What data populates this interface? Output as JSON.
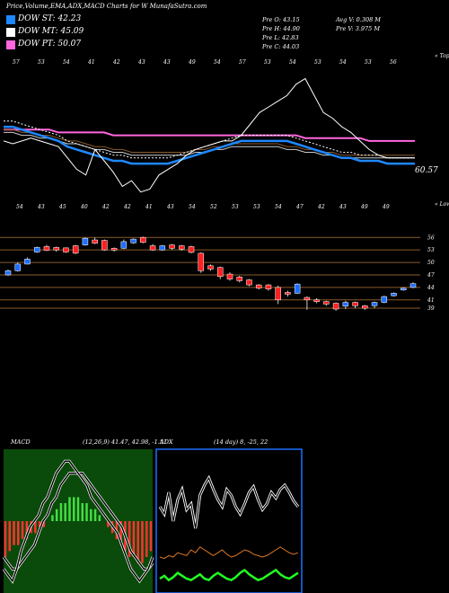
{
  "header": {
    "title": "Price,Volume,EMA,ADX,MACD Charts for W MunafaSutra.com"
  },
  "legend": [
    {
      "label": "DOW ST: 42.23",
      "color": "#1e88ff"
    },
    {
      "label": "DOW MT: 45.09",
      "color": "#ffffff"
    },
    {
      "label": "DOW PT: 50.07",
      "color": "#ff66dd"
    }
  ],
  "stats": {
    "o": "Pre  O: 43.15",
    "h": "Pre  H: 44.90",
    "l": "Pre  L: 42.83",
    "c": "Pre  C: 44.03",
    "avgv": "Avg V: 0.308 M",
    "prev": "Pre  V: 3.975 M"
  },
  "top_labels": {
    "right_top": "« Tops",
    "right_bottom": "« Lows",
    "last_price": "60.57"
  },
  "chart_data": [
    {
      "type": "line",
      "name": "ema-panel",
      "tops_labels": [
        "57",
        "53",
        "54",
        "41",
        "42",
        "43",
        "43",
        "49",
        "54",
        "57",
        "53",
        "54",
        "53",
        "54",
        "53",
        "56"
      ],
      "lows_labels": [
        "54",
        "43",
        "45",
        "40",
        "42",
        "42",
        "41",
        "43",
        "54",
        "52",
        "53",
        "53",
        "54",
        "47",
        "42",
        "43",
        "49",
        "49"
      ],
      "price": [
        50,
        49,
        50,
        51,
        50,
        49,
        48,
        44,
        40,
        38,
        47,
        43,
        39,
        34,
        36,
        32,
        33,
        38,
        40,
        42,
        45,
        47,
        48,
        49,
        50,
        50,
        52,
        56,
        60,
        62,
        64,
        66,
        70,
        72,
        66,
        60,
        58,
        55,
        53,
        50,
        47,
        45,
        44,
        44,
        44,
        44
      ],
      "dow_st": [
        55,
        55,
        54,
        53,
        52,
        51,
        50,
        48,
        47,
        46,
        45,
        44,
        43,
        43,
        42,
        42,
        42,
        42,
        42,
        43,
        44,
        45,
        46,
        47,
        48,
        49,
        50,
        50,
        50,
        50,
        50,
        50,
        49,
        48,
        47,
        46,
        45,
        44,
        44,
        43,
        43,
        43,
        42,
        42,
        42,
        42
      ],
      "dow_mt": [
        54,
        54,
        53,
        53,
        52,
        52,
        51,
        50,
        50,
        49,
        48,
        48,
        47,
        47,
        46,
        46,
        46,
        46,
        46,
        46,
        46,
        47,
        47,
        48,
        48,
        49,
        49,
        49,
        49,
        49,
        49,
        48,
        48,
        47,
        47,
        46,
        46,
        45,
        45,
        45,
        45,
        45,
        45,
        45,
        45,
        45
      ],
      "dow_pt": [
        54,
        54,
        54,
        54,
        54,
        54,
        53,
        53,
        53,
        53,
        53,
        53,
        52,
        52,
        52,
        52,
        52,
        52,
        52,
        52,
        52,
        52,
        52,
        52,
        52,
        52,
        52,
        52,
        52,
        52,
        52,
        52,
        52,
        51,
        51,
        51,
        51,
        51,
        51,
        51,
        50,
        50,
        50,
        50,
        50,
        50
      ],
      "ylim": [
        30,
        75
      ]
    },
    {
      "type": "candlestick",
      "name": "price-panel",
      "price_labels": [
        "56",
        "53",
        "50",
        "47",
        "44",
        "41",
        "39"
      ],
      "levels": [
        56,
        53,
        50,
        47,
        44,
        41,
        39
      ],
      "candles": [
        {
          "o": 47.0,
          "c": 48.0,
          "h": 48.3,
          "l": 46.8
        },
        {
          "o": 48.0,
          "c": 49.6,
          "h": 50.0,
          "l": 47.8
        },
        {
          "o": 49.6,
          "c": 50.8,
          "h": 51.2,
          "l": 49.5
        },
        {
          "o": 52.5,
          "c": 53.6,
          "h": 53.8,
          "l": 52.3
        },
        {
          "o": 53.8,
          "c": 52.9,
          "h": 54.2,
          "l": 52.7
        },
        {
          "o": 53.6,
          "c": 53.0,
          "h": 53.8,
          "l": 52.6
        },
        {
          "o": 53.5,
          "c": 52.5,
          "h": 53.6,
          "l": 52.3
        },
        {
          "o": 54.0,
          "c": 52.2,
          "h": 54.2,
          "l": 52.0
        },
        {
          "o": 54.2,
          "c": 55.8,
          "h": 56.0,
          "l": 54.0
        },
        {
          "o": 55.4,
          "c": 54.6,
          "h": 56.0,
          "l": 54.4
        },
        {
          "o": 55.3,
          "c": 53.0,
          "h": 55.5,
          "l": 52.8
        },
        {
          "o": 53.4,
          "c": 53.0,
          "h": 53.6,
          "l": 52.6
        },
        {
          "o": 53.4,
          "c": 55.0,
          "h": 55.5,
          "l": 53.2
        },
        {
          "o": 54.7,
          "c": 55.6,
          "h": 55.8,
          "l": 54.5
        },
        {
          "o": 56.0,
          "c": 54.8,
          "h": 56.2,
          "l": 54.6
        },
        {
          "o": 54.0,
          "c": 53.0,
          "h": 54.4,
          "l": 52.8
        },
        {
          "o": 53.0,
          "c": 54.0,
          "h": 54.2,
          "l": 52.8
        },
        {
          "o": 54.2,
          "c": 53.4,
          "h": 54.4,
          "l": 53.0
        },
        {
          "o": 54.0,
          "c": 53.2,
          "h": 54.2,
          "l": 52.8
        },
        {
          "o": 53.8,
          "c": 52.4,
          "h": 54.0,
          "l": 52.2
        },
        {
          "o": 52.2,
          "c": 48.0,
          "h": 52.4,
          "l": 47.5
        },
        {
          "o": 49.2,
          "c": 48.4,
          "h": 49.5,
          "l": 48.0
        },
        {
          "o": 48.8,
          "c": 46.6,
          "h": 49.0,
          "l": 46.0
        },
        {
          "o": 47.2,
          "c": 46.0,
          "h": 47.6,
          "l": 45.6
        },
        {
          "o": 46.5,
          "c": 45.6,
          "h": 46.8,
          "l": 45.2
        },
        {
          "o": 45.8,
          "c": 44.6,
          "h": 46.0,
          "l": 44.3
        },
        {
          "o": 44.6,
          "c": 43.8,
          "h": 44.8,
          "l": 43.5
        },
        {
          "o": 44.6,
          "c": 43.6,
          "h": 44.8,
          "l": 43.2
        },
        {
          "o": 44.0,
          "c": 41.0,
          "h": 44.4,
          "l": 40.0
        },
        {
          "o": 42.8,
          "c": 42.4,
          "h": 43.2,
          "l": 41.8
        },
        {
          "o": 42.6,
          "c": 44.8,
          "h": 45.0,
          "l": 42.4
        },
        {
          "o": 41.6,
          "c": 41.0,
          "h": 41.8,
          "l": 38.6
        },
        {
          "o": 41.0,
          "c": 40.6,
          "h": 41.4,
          "l": 40.2
        },
        {
          "o": 40.6,
          "c": 40.0,
          "h": 40.8,
          "l": 39.6
        },
        {
          "o": 40.2,
          "c": 38.8,
          "h": 40.4,
          "l": 38.4
        },
        {
          "o": 39.5,
          "c": 40.4,
          "h": 40.8,
          "l": 38.8
        },
        {
          "o": 40.4,
          "c": 39.6,
          "h": 40.6,
          "l": 39.0
        },
        {
          "o": 39.6,
          "c": 39.0,
          "h": 39.8,
          "l": 38.6
        },
        {
          "o": 39.6,
          "c": 40.4,
          "h": 40.6,
          "l": 39.0
        },
        {
          "o": 40.4,
          "c": 41.8,
          "h": 42.0,
          "l": 40.2
        },
        {
          "o": 42.0,
          "c": 42.6,
          "h": 42.8,
          "l": 41.8
        },
        {
          "o": 43.4,
          "c": 43.8,
          "h": 44.0,
          "l": 43.2
        },
        {
          "o": 44.0,
          "c": 44.9,
          "h": 45.2,
          "l": 43.8
        }
      ],
      "ylim": [
        37.5,
        58
      ]
    },
    {
      "type": "line",
      "name": "macd-panel",
      "title": "MACD",
      "params": "(12,26,9) 41.47, 42.98, -1.51",
      "hist": [
        -6,
        -5,
        -4,
        -4,
        -3,
        -3,
        -2,
        -2,
        -1,
        -1,
        0,
        1,
        2,
        3,
        3,
        4,
        4,
        4,
        3,
        3,
        2,
        2,
        1,
        0,
        -1,
        -2,
        -3,
        -4,
        -5,
        -6,
        -6,
        -7,
        -7,
        -6,
        -5
      ],
      "macd": [
        -8,
        -9,
        -10,
        -8,
        -5,
        -3,
        -1,
        0,
        1,
        3,
        4,
        6,
        8,
        9,
        10,
        10,
        9,
        8,
        7,
        6,
        4,
        3,
        2,
        1,
        0,
        -1,
        -2,
        -4,
        -6,
        -8,
        -9,
        -10,
        -9,
        -8,
        -6
      ],
      "signal": [
        -6,
        -7,
        -8,
        -8,
        -7,
        -6,
        -5,
        -4,
        -2,
        0,
        1,
        3,
        4,
        6,
        7,
        8,
        8,
        8,
        8,
        7,
        6,
        5,
        4,
        3,
        2,
        1,
        0,
        -1,
        -3,
        -5,
        -6,
        -7,
        -8,
        -8,
        -7
      ],
      "ylim": [
        -12,
        12
      ]
    },
    {
      "type": "line",
      "name": "adx-panel",
      "title": "ADX",
      "params": "(14 day) 8, -25, 22",
      "plus": [
        60,
        55,
        70,
        50,
        65,
        72,
        58,
        62,
        45,
        68,
        75,
        80,
        72,
        65,
        60,
        72,
        68,
        60,
        55,
        62,
        70,
        74,
        65,
        58,
        62,
        70,
        66,
        72,
        75,
        70,
        64,
        60
      ],
      "minus": [
        25,
        24,
        26,
        25,
        28,
        27,
        26,
        30,
        28,
        32,
        30,
        28,
        26,
        28,
        30,
        27,
        25,
        26,
        28,
        30,
        29,
        27,
        26,
        25,
        26,
        28,
        30,
        32,
        30,
        28,
        27,
        28
      ],
      "adx": [
        10,
        12,
        9,
        11,
        14,
        12,
        10,
        9,
        11,
        13,
        10,
        9,
        12,
        14,
        12,
        10,
        9,
        11,
        14,
        16,
        13,
        11,
        9,
        10,
        12,
        14,
        16,
        13,
        11,
        10,
        12,
        14
      ],
      "ylim": [
        0,
        100
      ]
    }
  ],
  "colors": {
    "dow_st": "#1e88ff",
    "dow_mt": "#ffffff",
    "dow_pt": "#ff66dd",
    "price_line": "#ffffff",
    "ema_brown": "#8b5a2b",
    "up_candle": "#1e6fff",
    "down_candle": "#ff2020",
    "level_line": "#8b5a2b",
    "macd_pos": "#44dd44",
    "macd_neg": "#ff3333",
    "adx_green": "#22ff22",
    "adx_orange": "#dd7722"
  }
}
